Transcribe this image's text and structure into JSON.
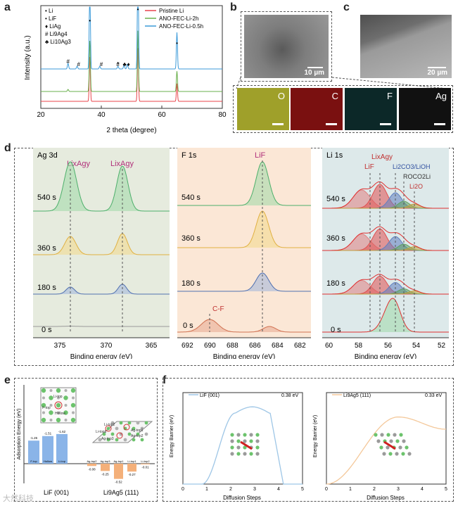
{
  "panel_labels": [
    "a",
    "b",
    "c",
    "d",
    "e",
    "f"
  ],
  "panel_a": {
    "xlabel": "2 theta (degree)",
    "ylabel": "Intensity (a.u.)",
    "xticks": [
      "20",
      "40",
      "60",
      "80"
    ],
    "markers": [
      {
        "symbol": "•",
        "label": "Li"
      },
      {
        "symbol": "•",
        "label": "LiF"
      },
      {
        "symbol": "♦",
        "label": "LiAg"
      },
      {
        "symbol": "#",
        "label": "Li9Ag4"
      },
      {
        "symbol": "♣",
        "label": "Li10Ag3"
      }
    ],
    "legend": [
      {
        "label": "Pristine Li",
        "color": "#e8434a"
      },
      {
        "label": "ANO-FEC-Li-2h",
        "color": "#6ab04c"
      },
      {
        "label": "ANO-FEC-Li-0.5h",
        "color": "#3b9ad9"
      }
    ],
    "peak_marks": [
      "#",
      "#",
      "#",
      "#",
      "*",
      "♣",
      "♦",
      "•",
      "•",
      "•"
    ]
  },
  "panel_b": {
    "scale": "10 µm"
  },
  "panel_c": {
    "scale": "20 µm"
  },
  "maps": [
    {
      "label": "O",
      "color": "#b5b52a"
    },
    {
      "label": "C",
      "color": "#9b1a1a"
    },
    {
      "label": "F",
      "color": "#1b6a6a"
    },
    {
      "label": "Ag",
      "color": "#1a1a1a"
    }
  ],
  "panel_d": {
    "xlabel": "Binding energy (eV)",
    "ag": {
      "title": "Ag 3d",
      "peak": "LixAgy",
      "xticks": [
        "375",
        "370",
        "365"
      ],
      "times": [
        "540 s",
        "360 s",
        "180 s",
        "0 s"
      ]
    },
    "f": {
      "title": "F 1s",
      "peak": "LiF",
      "minor_peak": "C-F",
      "xticks": [
        "692",
        "690",
        "688",
        "686",
        "684",
        "682"
      ],
      "times": [
        "540 s",
        "360 s",
        "180 s",
        "0 s"
      ]
    },
    "li": {
      "title": "Li 1s",
      "xticks": [
        "60",
        "58",
        "56",
        "54",
        "52"
      ],
      "times": [
        "540 s",
        "360 s",
        "180 s",
        "0 s"
      ],
      "species": [
        "LiF",
        "LixAgy",
        "Li2CO3/LiOH",
        "ROCO2Li",
        "Li2O"
      ]
    }
  },
  "panel_e": {
    "ylabel": "Adsorption Energy (eV)",
    "groups": [
      {
        "name": "LiF (001)",
        "bars": [
          {
            "label": "F-top",
            "value": -1.26
          },
          {
            "label": "Hollow",
            "value": -1.51
          },
          {
            "label": "Li-top",
            "value": -1.62
          }
        ]
      },
      {
        "name": "Li9Ag5 (111)",
        "bars": [
          {
            "label": "Ag-top2",
            "value": -0.08
          },
          {
            "label": "Ag-top3",
            "value": -0.25
          },
          {
            "label": "Ag-top1",
            "value": -0.52
          },
          {
            "label": "Li-top1",
            "value": -0.27
          },
          {
            "label": "Li-top2",
            "value": -0.01
          }
        ]
      }
    ],
    "site_labels": [
      "Li-top",
      "F-top",
      "Hollow",
      "Li-top2",
      "Li-top1",
      "Ag-top1",
      "Ag-top2",
      "Ag-top3"
    ],
    "bar_color_pos": "#8ab4e8",
    "bar_color_neg": "#f4b07a"
  },
  "panel_f": {
    "ylabel": "Energy Barrier (eV)",
    "xlabel": "Diffusion Steps",
    "plots": [
      {
        "legend": "LiF (001)",
        "barrier": "0.38 eV",
        "color": "#9ec6e6"
      },
      {
        "legend": "Li9Ag5 (111)",
        "barrier": "0.33 eV",
        "color": "#f4c89a"
      }
    ],
    "xticks": [
      "0",
      "1",
      "2",
      "3",
      "4",
      "5"
    ]
  },
  "watermark": "大然科技"
}
